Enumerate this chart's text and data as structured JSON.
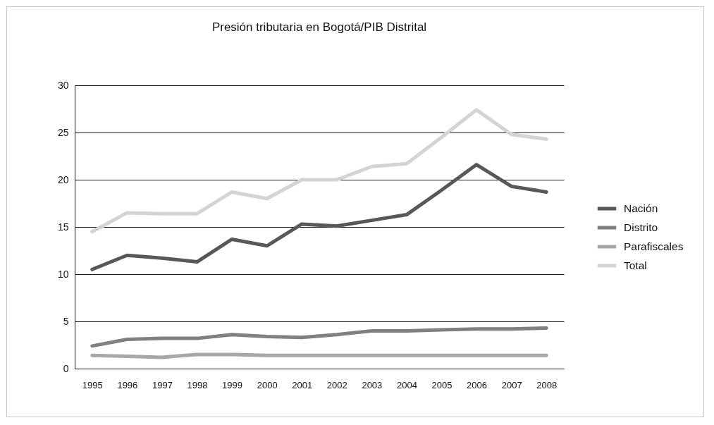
{
  "chart_data": {
    "type": "line",
    "title": "Presión tributaria en Bogotá/PIB Distrital",
    "categories": [
      "1995",
      "1996",
      "1997",
      "1998",
      "1999",
      "2000",
      "2001",
      "2002",
      "2003",
      "2004",
      "2005",
      "2006",
      "2007",
      "2008"
    ],
    "series": [
      {
        "name": "Nación",
        "color": "#58585a",
        "values": [
          10.5,
          12.0,
          11.7,
          11.3,
          13.7,
          13.0,
          15.3,
          15.1,
          15.7,
          16.3,
          18.9,
          21.6,
          19.3,
          18.7
        ]
      },
      {
        "name": "Distrito",
        "color": "#808083",
        "values": [
          2.4,
          3.1,
          3.2,
          3.2,
          3.6,
          3.4,
          3.3,
          3.6,
          4.0,
          4.0,
          4.1,
          4.2,
          4.2,
          4.3
        ]
      },
      {
        "name": "Parafiscales",
        "color": "#a7a7a9",
        "values": [
          1.4,
          1.3,
          1.2,
          1.5,
          1.5,
          1.4,
          1.4,
          1.4,
          1.4,
          1.4,
          1.4,
          1.4,
          1.4,
          1.4
        ]
      },
      {
        "name": "Total",
        "color": "#d4d4d4",
        "values": [
          14.5,
          16.5,
          16.4,
          16.4,
          18.7,
          18.0,
          20.0,
          20.0,
          21.4,
          21.7,
          24.5,
          27.4,
          24.8,
          24.3
        ]
      }
    ],
    "ylim": [
      0,
      30
    ],
    "yticks": [
      0,
      5,
      10,
      15,
      20,
      25,
      30
    ],
    "grid": "y",
    "legend": "right"
  }
}
